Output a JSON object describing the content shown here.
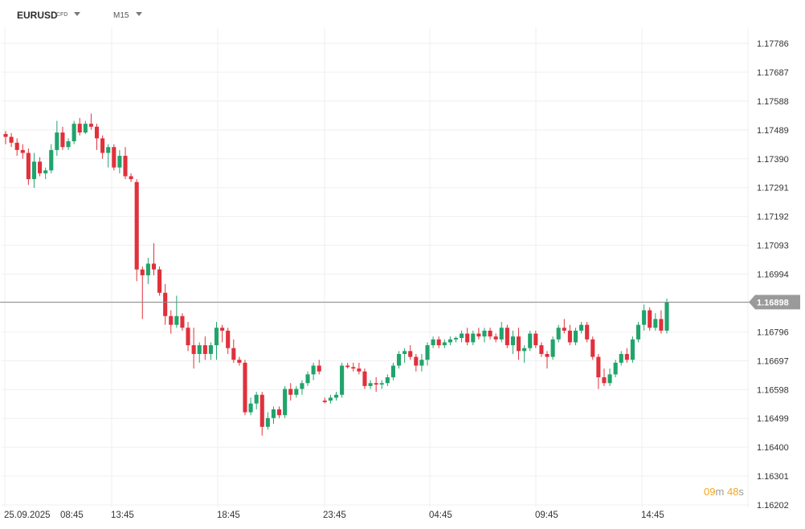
{
  "header": {
    "symbol": "EURUSD",
    "instrument_type": "CFD",
    "timeframe": "M15"
  },
  "countdown": {
    "minutes": "09",
    "minutes_unit": "m",
    "seconds": "48",
    "seconds_unit": "s"
  },
  "colors": {
    "up": "#20a46b",
    "down": "#e0313c",
    "last_price_line": "#8c8c8c",
    "grid": "#efefef"
  },
  "chart_data": {
    "type": "candlestick",
    "timeframe": "M15",
    "x_tick_labels": [
      "25.09.2025",
      "08:45",
      "13:45",
      "18:45",
      "23:45",
      "04:45",
      "09:45",
      "14:45"
    ],
    "y_tick_labels": [
      "1.17786",
      "1.17687",
      "1.17588",
      "1.17489",
      "1.17390",
      "1.17291",
      "1.17192",
      "1.17093",
      "1.16994",
      "1.16796",
      "1.16697",
      "1.16598",
      "1.16499",
      "1.16400",
      "1.16301",
      "1.16202"
    ],
    "ylim": [
      1.16202,
      1.17786
    ],
    "y_step": 0.00099,
    "last_price": "1.16898",
    "candles_ohlc": [
      [
        1.17475,
        1.17485,
        1.1744,
        1.17465
      ],
      [
        1.17465,
        1.17478,
        1.1743,
        1.17445
      ],
      [
        1.17445,
        1.1746,
        1.174,
        1.1742
      ],
      [
        1.1742,
        1.1744,
        1.1739,
        1.1741
      ],
      [
        1.1741,
        1.17425,
        1.173,
        1.1732
      ],
      [
        1.1732,
        1.1741,
        1.1729,
        1.1738
      ],
      [
        1.1738,
        1.17395,
        1.1733,
        1.1734
      ],
      [
        1.1734,
        1.1736,
        1.1732,
        1.1735
      ],
      [
        1.1735,
        1.1744,
        1.1734,
        1.1742
      ],
      [
        1.1742,
        1.1752,
        1.174,
        1.1748
      ],
      [
        1.1748,
        1.175,
        1.1742,
        1.1743
      ],
      [
        1.1743,
        1.1746,
        1.1742,
        1.1745
      ],
      [
        1.1745,
        1.1752,
        1.1744,
        1.1751
      ],
      [
        1.1751,
        1.1753,
        1.1747,
        1.1748
      ],
      [
        1.1748,
        1.1752,
        1.17475,
        1.1751
      ],
      [
        1.1751,
        1.17545,
        1.1749,
        1.175
      ],
      [
        1.175,
        1.1751,
        1.1742,
        1.1746
      ],
      [
        1.1746,
        1.1747,
        1.1739,
        1.1741
      ],
      [
        1.1741,
        1.1744,
        1.1736,
        1.1743
      ],
      [
        1.1743,
        1.1744,
        1.1735,
        1.1736
      ],
      [
        1.1736,
        1.1742,
        1.1734,
        1.174
      ],
      [
        1.174,
        1.1743,
        1.1732,
        1.1733
      ],
      [
        1.1733,
        1.1734,
        1.1731,
        1.1732
      ],
      [
        1.1731,
        1.1732,
        1.1697,
        1.1701
      ],
      [
        1.1701,
        1.1702,
        1.1684,
        1.1699
      ],
      [
        1.1699,
        1.1705,
        1.1696,
        1.1703
      ],
      [
        1.1703,
        1.171,
        1.1699,
        1.1701
      ],
      [
        1.1701,
        1.1702,
        1.1692,
        1.1693
      ],
      [
        1.1693,
        1.1696,
        1.1682,
        1.1685
      ],
      [
        1.1685,
        1.1687,
        1.1679,
        1.1682
      ],
      [
        1.1682,
        1.1692,
        1.1681,
        1.1685
      ],
      [
        1.1685,
        1.1686,
        1.168,
        1.1681
      ],
      [
        1.1681,
        1.1683,
        1.1673,
        1.1675
      ],
      [
        1.1675,
        1.1681,
        1.1667,
        1.1672
      ],
      [
        1.1672,
        1.1676,
        1.1669,
        1.1675
      ],
      [
        1.1675,
        1.1678,
        1.167,
        1.1672
      ],
      [
        1.1672,
        1.1676,
        1.167,
        1.1675
      ],
      [
        1.1675,
        1.1683,
        1.167,
        1.1681
      ],
      [
        1.1681,
        1.1682,
        1.1676,
        1.168
      ],
      [
        1.168,
        1.1681,
        1.1672,
        1.1674
      ],
      [
        1.1674,
        1.1677,
        1.1669,
        1.167
      ],
      [
        1.167,
        1.1671,
        1.1668,
        1.1669
      ],
      [
        1.1669,
        1.167,
        1.1651,
        1.1652
      ],
      [
        1.1652,
        1.1657,
        1.1651,
        1.1655
      ],
      [
        1.1655,
        1.1659,
        1.1653,
        1.1658
      ],
      [
        1.1658,
        1.1659,
        1.1644,
        1.1647
      ],
      [
        1.1647,
        1.1652,
        1.1646,
        1.165
      ],
      [
        1.165,
        1.1654,
        1.1648,
        1.1653
      ],
      [
        1.1653,
        1.1654,
        1.165,
        1.1651
      ],
      [
        1.1651,
        1.1661,
        1.165,
        1.166
      ],
      [
        1.166,
        1.1662,
        1.1656,
        1.1658
      ],
      [
        1.1658,
        1.1661,
        1.1657,
        1.166
      ],
      [
        1.166,
        1.1663,
        1.1658,
        1.1662
      ],
      [
        1.1662,
        1.1666,
        1.1661,
        1.1665
      ],
      [
        1.1665,
        1.1669,
        1.1663,
        1.1668
      ],
      [
        1.1668,
        1.167,
        1.1665,
        1.1666
      ],
      [
        1.1656,
        1.1657,
        1.1655,
        1.16555
      ],
      [
        1.1656,
        1.1658,
        1.1655,
        1.1657
      ],
      [
        1.1657,
        1.1659,
        1.1656,
        1.1658
      ],
      [
        1.1658,
        1.1669,
        1.1657,
        1.1668
      ],
      [
        1.1668,
        1.1669,
        1.1667,
        1.16675
      ],
      [
        1.16675,
        1.1669,
        1.1666,
        1.1667
      ],
      [
        1.1667,
        1.1669,
        1.1665,
        1.1666
      ],
      [
        1.1666,
        1.1667,
        1.166,
        1.1661
      ],
      [
        1.1661,
        1.1663,
        1.166,
        1.1662
      ],
      [
        1.1662,
        1.1664,
        1.1659,
        1.16615
      ],
      [
        1.16615,
        1.1663,
        1.166,
        1.1662
      ],
      [
        1.1662,
        1.1665,
        1.1661,
        1.1664
      ],
      [
        1.1664,
        1.1669,
        1.1663,
        1.1668
      ],
      [
        1.1668,
        1.1673,
        1.1667,
        1.1672
      ],
      [
        1.1672,
        1.1674,
        1.1669,
        1.1673
      ],
      [
        1.1673,
        1.1675,
        1.167,
        1.1671
      ],
      [
        1.1671,
        1.1672,
        1.1666,
        1.1668
      ],
      [
        1.1668,
        1.1672,
        1.1666,
        1.167
      ],
      [
        1.167,
        1.1676,
        1.1668,
        1.1675
      ],
      [
        1.1675,
        1.1678,
        1.1674,
        1.1677
      ],
      [
        1.1677,
        1.1678,
        1.1674,
        1.1675
      ],
      [
        1.1675,
        1.1677,
        1.1674,
        1.1676
      ],
      [
        1.1676,
        1.1678,
        1.1675,
        1.1677
      ],
      [
        1.1677,
        1.1678,
        1.1676,
        1.16775
      ],
      [
        1.16775,
        1.168,
        1.1676,
        1.1679
      ],
      [
        1.1679,
        1.1681,
        1.1675,
        1.1676
      ],
      [
        1.1676,
        1.168,
        1.1675,
        1.1679
      ],
      [
        1.1679,
        1.1681,
        1.1677,
        1.1678
      ],
      [
        1.1678,
        1.1681,
        1.1676,
        1.168
      ],
      [
        1.168,
        1.1681,
        1.1677,
        1.1678
      ],
      [
        1.1678,
        1.1679,
        1.1676,
        1.1677
      ],
      [
        1.1677,
        1.1683,
        1.1676,
        1.1681
      ],
      [
        1.1681,
        1.1682,
        1.1674,
        1.1675
      ],
      [
        1.1675,
        1.168,
        1.1672,
        1.1678
      ],
      [
        1.1678,
        1.1681,
        1.167,
        1.1673
      ],
      [
        1.1673,
        1.1675,
        1.1669,
        1.1674
      ],
      [
        1.1674,
        1.168,
        1.1673,
        1.1679
      ],
      [
        1.1679,
        1.168,
        1.1674,
        1.1675
      ],
      [
        1.1675,
        1.1676,
        1.1671,
        1.1672
      ],
      [
        1.1672,
        1.1673,
        1.1667,
        1.1671
      ],
      [
        1.1671,
        1.1678,
        1.167,
        1.1677
      ],
      [
        1.1677,
        1.1682,
        1.1676,
        1.1681
      ],
      [
        1.1681,
        1.1684,
        1.1679,
        1.168
      ],
      [
        1.168,
        1.1682,
        1.1675,
        1.1676
      ],
      [
        1.1676,
        1.1681,
        1.1675,
        1.168
      ],
      [
        1.168,
        1.1683,
        1.1679,
        1.1682
      ],
      [
        1.1682,
        1.1683,
        1.1676,
        1.1677
      ],
      [
        1.1677,
        1.1678,
        1.167,
        1.1671
      ],
      [
        1.1671,
        1.1672,
        1.166,
        1.1664
      ],
      [
        1.1664,
        1.1667,
        1.1661,
        1.1662
      ],
      [
        1.1662,
        1.1667,
        1.1661,
        1.1665
      ],
      [
        1.1665,
        1.167,
        1.1664,
        1.1669
      ],
      [
        1.1669,
        1.1673,
        1.1668,
        1.1672
      ],
      [
        1.1672,
        1.1674,
        1.1669,
        1.167
      ],
      [
        1.167,
        1.1678,
        1.1669,
        1.1677
      ],
      [
        1.1677,
        1.1683,
        1.1676,
        1.1682
      ],
      [
        1.1682,
        1.1689,
        1.168,
        1.1687
      ],
      [
        1.1687,
        1.1688,
        1.168,
        1.1681
      ],
      [
        1.1681,
        1.1686,
        1.168,
        1.1684
      ],
      [
        1.1684,
        1.1687,
        1.1679,
        1.168
      ],
      [
        1.168,
        1.1691,
        1.1679,
        1.16898
      ]
    ]
  }
}
